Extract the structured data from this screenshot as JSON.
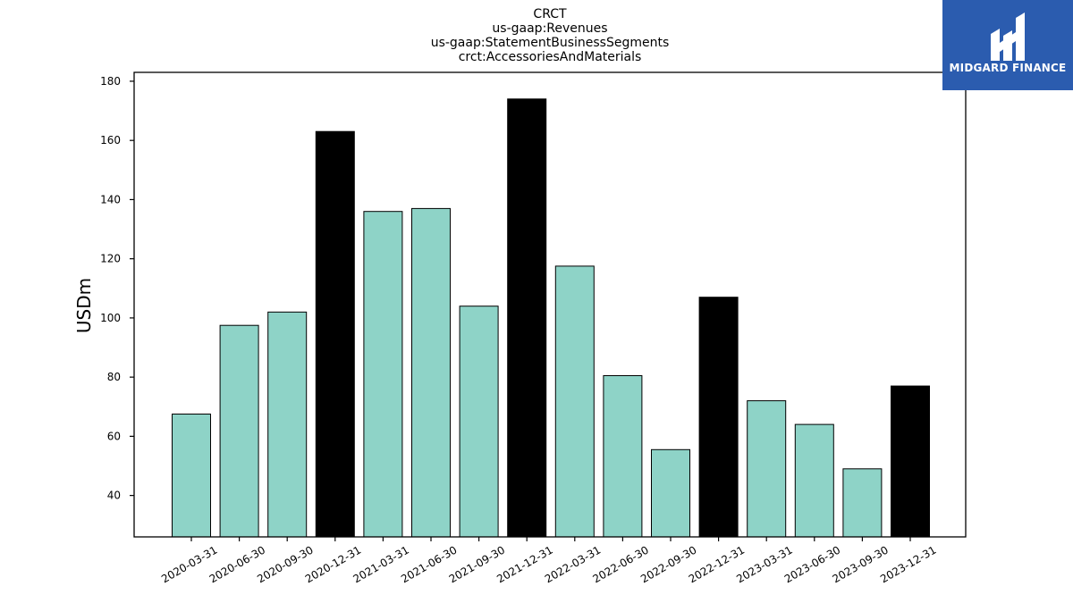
{
  "chart_data": {
    "type": "bar",
    "title": [
      "CRCT",
      "us-gaap:Revenues",
      "us-gaap:StatementBusinessSegments",
      "crct:AccessoriesAndMaterials"
    ],
    "ylabel": "USDm",
    "xlabel": "",
    "ylim": [
      26,
      183
    ],
    "yticks": [
      40,
      60,
      80,
      100,
      120,
      140,
      160,
      180
    ],
    "grid": false,
    "categories": [
      "2020-03-31",
      "2020-06-30",
      "2020-09-30",
      "2020-12-31",
      "2021-03-31",
      "2021-06-30",
      "2021-09-30",
      "2021-12-31",
      "2022-03-31",
      "2022-06-30",
      "2022-09-30",
      "2022-12-31",
      "2023-03-31",
      "2023-06-30",
      "2023-09-30",
      "2023-12-31"
    ],
    "values": [
      67.5,
      97.5,
      102,
      163,
      136,
      137,
      104,
      174,
      117.5,
      80.5,
      55.5,
      107,
      72,
      64,
      49,
      77
    ],
    "highlight": [
      false,
      false,
      false,
      true,
      false,
      false,
      false,
      true,
      false,
      false,
      false,
      true,
      false,
      false,
      false,
      true
    ],
    "colors": {
      "bar": "#8ed3c7",
      "highlight": "#000000",
      "edge": "#000000"
    }
  },
  "logo": {
    "text": "MIDGARD FINANCE",
    "background": "#2b5caf"
  }
}
